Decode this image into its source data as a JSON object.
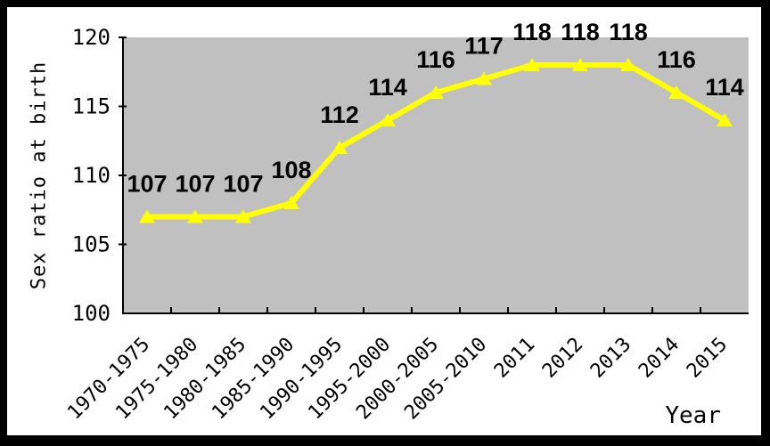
{
  "chart_data": {
    "type": "line",
    "title": "",
    "ylabel": "Sex ratio at birth",
    "xlabel": "Year",
    "categories": [
      "1970-1975",
      "1975-1980",
      "1980-1985",
      "1985-1990",
      "1990-1995",
      "1995-2000",
      "2000-2005",
      "2005-2010",
      "2011",
      "2012",
      "2013",
      "2014",
      "2015"
    ],
    "values": [
      107,
      107,
      107,
      108,
      112,
      114,
      116,
      117,
      118,
      118,
      118,
      116,
      114
    ],
    "ylim": [
      100,
      120
    ],
    "yticks": [
      100,
      105,
      110,
      115,
      120
    ],
    "grid": false,
    "legend_position": "none",
    "marker": "triangle-up",
    "data_labels_visible": true,
    "colors": {
      "line": "#FFFF00",
      "marker": "#FFFF00",
      "plot_background": "#C0C0C0",
      "axis": "#000000",
      "data_label": "#000000",
      "tick_label": "#000000",
      "frame_border": "#000000",
      "canvas_background": "#FFFFFF"
    }
  }
}
